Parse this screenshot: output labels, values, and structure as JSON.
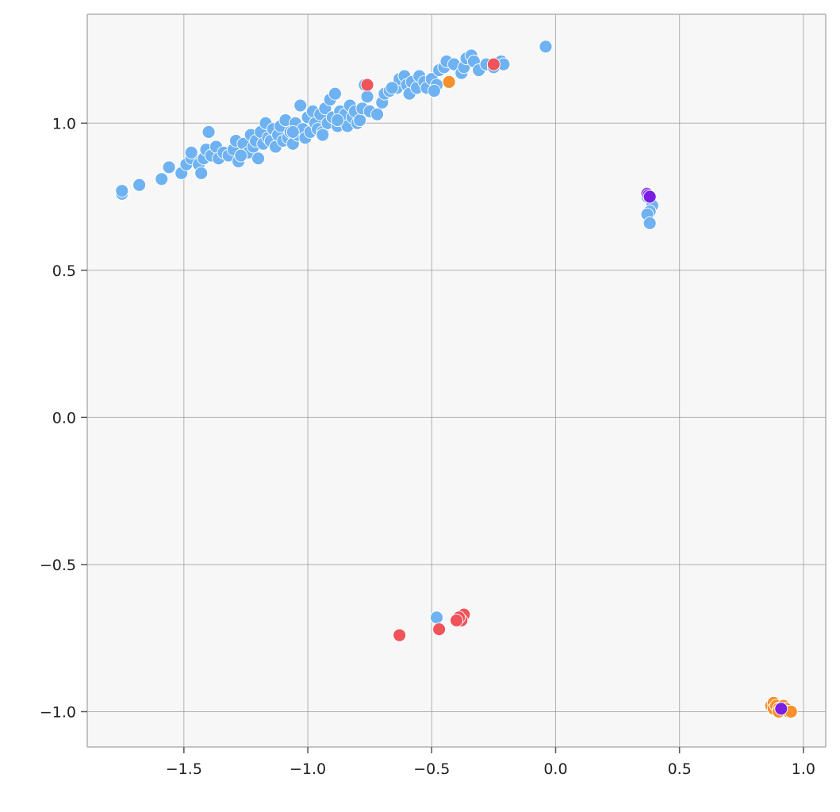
{
  "chart_data": {
    "type": "scatter",
    "title": "",
    "xlabel": "",
    "ylabel": "",
    "xlim": [
      -1.89,
      1.09
    ],
    "ylim": [
      -1.12,
      1.37
    ],
    "xticks": [
      -1.5,
      -1.0,
      -0.5,
      0.0,
      0.5,
      1.0
    ],
    "yticks": [
      -1.0,
      -0.5,
      0.0,
      0.5,
      1.0
    ],
    "xtick_labels": [
      "−1.5",
      "−1.0",
      "−0.5",
      "0.0",
      "0.5",
      "1.0"
    ],
    "ytick_labels": [
      "−1.0",
      "−0.5",
      "0.0",
      "0.5",
      "1.0"
    ],
    "grid": true,
    "background": "#f7f7f7",
    "series": [
      {
        "color": "#6fb2f2",
        "points": [
          [
            -1.75,
            0.76
          ],
          [
            -1.75,
            0.77
          ],
          [
            -1.68,
            0.79
          ],
          [
            -1.59,
            0.81
          ],
          [
            -1.56,
            0.85
          ],
          [
            -1.51,
            0.83
          ],
          [
            -1.49,
            0.86
          ],
          [
            -1.47,
            0.88
          ],
          [
            -1.47,
            0.9
          ],
          [
            -1.44,
            0.86
          ],
          [
            -1.43,
            0.83
          ],
          [
            -1.42,
            0.88
          ],
          [
            -1.41,
            0.91
          ],
          [
            -1.4,
            0.97
          ],
          [
            -1.39,
            0.89
          ],
          [
            -1.37,
            0.92
          ],
          [
            -1.36,
            0.88
          ],
          [
            -1.34,
            0.9
          ],
          [
            -1.32,
            0.89
          ],
          [
            -1.3,
            0.91
          ],
          [
            -1.29,
            0.94
          ],
          [
            -1.28,
            0.87
          ],
          [
            -1.26,
            0.93
          ],
          [
            -1.24,
            0.9
          ],
          [
            -1.23,
            0.96
          ],
          [
            -1.22,
            0.92
          ],
          [
            -1.21,
            0.94
          ],
          [
            -1.2,
            0.88
          ],
          [
            -1.19,
            0.97
          ],
          [
            -1.18,
            0.93
          ],
          [
            -1.17,
            1.0
          ],
          [
            -1.16,
            0.95
          ],
          [
            -1.15,
            0.94
          ],
          [
            -1.14,
            0.98
          ],
          [
            -1.13,
            0.92
          ],
          [
            -1.12,
            0.96
          ],
          [
            -1.11,
            0.99
          ],
          [
            -1.1,
            0.94
          ],
          [
            -1.09,
            1.01
          ],
          [
            -1.08,
            0.95
          ],
          [
            -1.07,
            0.97
          ],
          [
            -1.06,
            0.93
          ],
          [
            -1.05,
            1.0
          ],
          [
            -1.04,
            0.96
          ],
          [
            -1.03,
            1.06
          ],
          [
            -1.02,
            0.98
          ],
          [
            -1.01,
            0.95
          ],
          [
            -1.0,
            1.02
          ],
          [
            -0.99,
            0.97
          ],
          [
            -0.98,
            1.04
          ],
          [
            -0.97,
            1.0
          ],
          [
            -0.96,
            0.98
          ],
          [
            -0.95,
            1.03
          ],
          [
            -0.94,
            0.97
          ],
          [
            -0.93,
            1.05
          ],
          [
            -0.92,
            1.0
          ],
          [
            -0.91,
            1.08
          ],
          [
            -0.9,
            1.02
          ],
          [
            -0.89,
            1.1
          ],
          [
            -0.88,
            0.99
          ],
          [
            -0.87,
            1.04
          ],
          [
            -0.86,
            1.01
          ],
          [
            -0.85,
            1.03
          ],
          [
            -0.84,
            0.99
          ],
          [
            -0.83,
            1.06
          ],
          [
            -0.82,
            1.02
          ],
          [
            -0.81,
            1.04
          ],
          [
            -0.8,
            1.0
          ],
          [
            -0.79,
            1.01
          ],
          [
            -0.78,
            1.05
          ],
          [
            -0.77,
            1.13
          ],
          [
            -0.76,
            1.09
          ],
          [
            -0.75,
            1.04
          ],
          [
            -0.72,
            1.03
          ],
          [
            -0.7,
            1.07
          ],
          [
            -0.69,
            1.1
          ],
          [
            -0.67,
            1.11
          ],
          [
            -0.64,
            1.12
          ],
          [
            -0.63,
            1.15
          ],
          [
            -0.61,
            1.16
          ],
          [
            -0.6,
            1.13
          ],
          [
            -0.59,
            1.1
          ],
          [
            -0.58,
            1.14
          ],
          [
            -0.56,
            1.12
          ],
          [
            -0.55,
            1.16
          ],
          [
            -0.53,
            1.14
          ],
          [
            -0.52,
            1.12
          ],
          [
            -0.5,
            1.15
          ],
          [
            -0.48,
            1.13
          ],
          [
            -0.47,
            1.18
          ],
          [
            -0.45,
            1.19
          ],
          [
            -0.44,
            1.21
          ],
          [
            -0.41,
            1.2
          ],
          [
            -0.38,
            1.17
          ],
          [
            -0.37,
            1.19
          ],
          [
            -0.36,
            1.22
          ],
          [
            -0.34,
            1.23
          ],
          [
            -0.33,
            1.21
          ],
          [
            -0.31,
            1.18
          ],
          [
            -0.28,
            1.2
          ],
          [
            -0.25,
            1.19
          ],
          [
            -0.22,
            1.21
          ],
          [
            -0.21,
            1.2
          ],
          [
            -0.04,
            1.26
          ],
          [
            -1.27,
            0.89
          ],
          [
            -1.06,
            0.97
          ],
          [
            -0.94,
            0.96
          ],
          [
            -0.88,
            1.01
          ],
          [
            -0.66,
            1.12
          ],
          [
            -0.49,
            1.11
          ],
          [
            0.37,
            0.75
          ],
          [
            0.39,
            0.72
          ],
          [
            0.38,
            0.7
          ],
          [
            0.37,
            0.69
          ],
          [
            0.38,
            0.66
          ],
          [
            -0.48,
            -0.68
          ]
        ]
      },
      {
        "color": "#f0545a",
        "points": [
          [
            -0.76,
            1.13
          ],
          [
            -0.25,
            1.2
          ],
          [
            -0.37,
            -0.67
          ],
          [
            -0.38,
            -0.69
          ],
          [
            -0.39,
            -0.68
          ],
          [
            -0.4,
            -0.69
          ],
          [
            -0.47,
            -0.72
          ],
          [
            -0.63,
            -0.74
          ]
        ]
      },
      {
        "color": "#f5902c",
        "points": [
          [
            -0.43,
            1.14
          ],
          [
            0.87,
            -0.98
          ],
          [
            0.88,
            -0.97
          ],
          [
            0.88,
            -0.99
          ],
          [
            0.89,
            -0.98
          ],
          [
            0.9,
            -0.99
          ],
          [
            0.9,
            -1.0
          ],
          [
            0.91,
            -0.99
          ],
          [
            0.92,
            -0.98
          ],
          [
            0.93,
            -0.99
          ],
          [
            0.94,
            -1.0
          ],
          [
            0.95,
            -1.0
          ]
        ]
      },
      {
        "color": "#7a1ee3",
        "points": [
          [
            0.37,
            0.76
          ],
          [
            0.375,
            0.755
          ],
          [
            0.38,
            0.75
          ],
          [
            0.91,
            -0.99
          ]
        ]
      }
    ]
  }
}
